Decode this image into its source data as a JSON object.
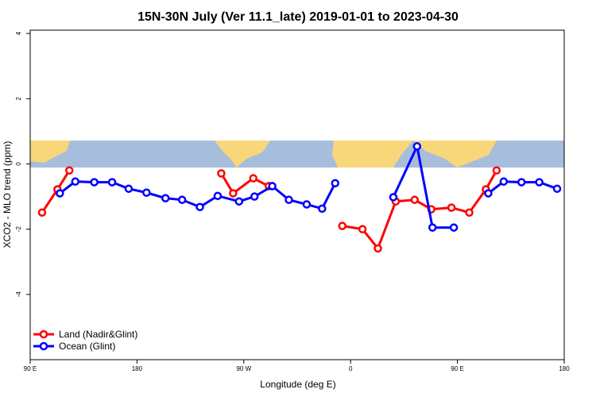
{
  "chart_data": {
    "type": "line",
    "title": "15N-30N July (Ver 11.1_late)   2019-01-01 to 2023-04-30",
    "x_label": "Longitude (deg E)",
    "y_label": "XCO2 - MLO trend (ppm)",
    "xlim": [
      90,
      540
    ],
    "ylim": [
      -6,
      4.1
    ],
    "xticks": [
      {
        "value": 90,
        "label": "90 E"
      },
      {
        "value": 180,
        "label": "180"
      },
      {
        "value": 270,
        "label": "90 W"
      },
      {
        "value": 360,
        "label": "0"
      },
      {
        "value": 450,
        "label": "90 E"
      },
      {
        "value": 540,
        "label": "180"
      }
    ],
    "yticks": [
      -4,
      -2,
      0,
      2,
      4
    ],
    "legend": "bottom-left",
    "series": [
      {
        "name": "Land (Nadir&Glint)",
        "color": "#ff0000",
        "x": [
          100,
          113,
          123,
          null,
          251,
          261,
          278,
          291,
          null,
          353,
          370,
          383,
          398,
          414,
          428,
          445,
          460,
          474,
          483
        ],
        "values": [
          -1.49,
          -0.78,
          -0.2,
          null,
          -0.29,
          -0.9,
          -0.44,
          -0.68,
          null,
          -1.9,
          -2.0,
          -2.59,
          -1.15,
          -1.1,
          -1.39,
          -1.34,
          -1.49,
          -0.78,
          -0.2
        ]
      },
      {
        "name": "Ocean (Glint)",
        "color": "#0000ff",
        "x": [
          115,
          128,
          144,
          159,
          173,
          188,
          204,
          218,
          233,
          248,
          266,
          279,
          294,
          308,
          323,
          336,
          347,
          null,
          396,
          416,
          429,
          447,
          null,
          476,
          489,
          504,
          519,
          534
        ],
        "values": [
          -0.9,
          -0.54,
          -0.56,
          -0.56,
          -0.76,
          -0.88,
          -1.05,
          -1.1,
          -1.32,
          -0.98,
          -1.15,
          -1.0,
          -0.68,
          -1.1,
          -1.24,
          -1.37,
          -0.59,
          null,
          -1.02,
          0.54,
          -1.95,
          -1.95,
          null,
          -0.9,
          -0.54,
          -0.56,
          -0.56,
          -0.76
        ]
      }
    ]
  }
}
